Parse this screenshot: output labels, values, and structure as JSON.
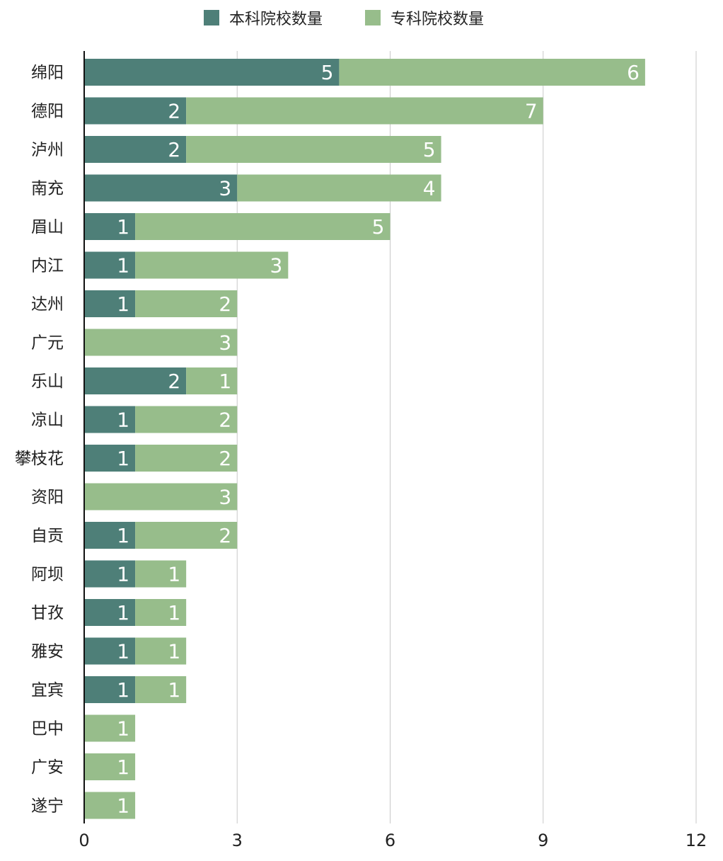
{
  "chart_data": {
    "type": "bar",
    "orientation": "horizontal",
    "stacked": true,
    "title": "",
    "xlabel": "",
    "ylabel": "",
    "xlim": [
      0,
      12
    ],
    "xticks": [
      0,
      3,
      6,
      9,
      12
    ],
    "grid": true,
    "legend_position": "top",
    "categories": [
      "绵阳",
      "德阳",
      "泸州",
      "南充",
      "眉山",
      "内江",
      "达州",
      "广元",
      "乐山",
      "凉山",
      "攀枝花",
      "资阳",
      "自贡",
      "阿坝",
      "甘孜",
      "雅安",
      "宜宾",
      "巴中",
      "广安",
      "遂宁"
    ],
    "series": [
      {
        "name": "本科院校数量",
        "color": "#4e7f78",
        "values": [
          5,
          2,
          2,
          3,
          1,
          1,
          1,
          0,
          2,
          1,
          1,
          0,
          1,
          1,
          1,
          1,
          1,
          0,
          0,
          0
        ]
      },
      {
        "name": "专科院校数量",
        "color": "#97bd8b",
        "values": [
          6,
          7,
          5,
          4,
          5,
          3,
          2,
          3,
          1,
          2,
          2,
          3,
          2,
          1,
          1,
          1,
          1,
          1,
          1,
          1
        ]
      }
    ]
  }
}
